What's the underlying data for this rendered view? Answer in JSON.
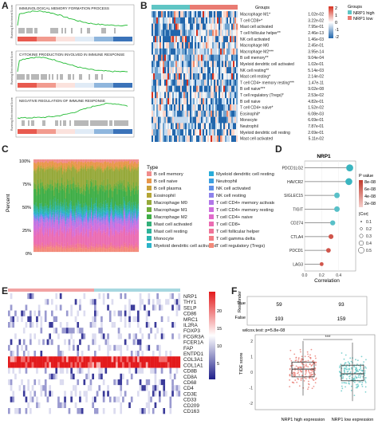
{
  "panel_labels": [
    "A",
    "B",
    "C",
    "D",
    "E",
    "F"
  ],
  "colors": {
    "heat_hi": "#d7301f",
    "heat_lo": "#2166ac",
    "nrp1_high": "#5fc5c4",
    "nrp1_low": "#e97b72",
    "green": "#22bb33"
  },
  "panel_a": {
    "titles": [
      "IMMUNOLOGICAL MEMORY FORMATION PROCESS",
      "CYTOKINE PRODUCTION INVOLVED IN IMMUNE RESPONSE",
      "NEGATIVE REGULATION OF IMMUNE RESPONSE"
    ],
    "ylabel": "Running Enrichment Score"
  },
  "panel_b": {
    "legend_title": "Groups",
    "legend_items": [
      "NRP1 high",
      "NRP1 low"
    ],
    "scale_ticks": [
      "2",
      "1",
      "0",
      "-1",
      "-2"
    ],
    "rows": [
      {
        "name": "Macrophage M1*",
        "p": "1.02e-02"
      },
      {
        "name": "T cell CD8+*",
        "p": "3.22e-02"
      },
      {
        "name": "Mast cell activated",
        "p": "7.95e-01"
      },
      {
        "name": "T cell follicular helper**",
        "p": "2.46e-13"
      },
      {
        "name": "NK cell activated",
        "p": "1.46e-03"
      },
      {
        "name": "Macrophage M0",
        "p": "2.45e-01"
      },
      {
        "name": "Macrophage M2***",
        "p": "3.95e-14"
      },
      {
        "name": "B cell memory**",
        "p": "9.04e-04"
      },
      {
        "name": "Myeloid dendritic cell activated",
        "p": "1.02e-01"
      },
      {
        "name": "NK cell resting**",
        "p": "5.14e-03"
      },
      {
        "name": "Mast cell resting*",
        "p": "2.14e-02"
      },
      {
        "name": "T cell CD4+ memory resting***",
        "p": "1.47e-11"
      },
      {
        "name": "B cell naive***",
        "p": "9.02e-08"
      },
      {
        "name": "T cell regulatory (Tregs)*",
        "p": "2.53e-02"
      },
      {
        "name": "B cell naive",
        "p": "4.82e-01"
      },
      {
        "name": "T cell CD4+ naive*",
        "p": "1.52e-02"
      },
      {
        "name": "Eosinophil*",
        "p": "6.08e-03"
      },
      {
        "name": "Monocyte",
        "p": "6.69e-01"
      },
      {
        "name": "Neutrophil",
        "p": "7.87e-01"
      },
      {
        "name": "Myeloid dendritic cell resting",
        "p": "2.69e-01"
      },
      {
        "name": "Mast cell activated",
        "p": "5.11e-02"
      }
    ]
  },
  "panel_c": {
    "ylabel": "Percent",
    "yticks": [
      "100%",
      "75%",
      "50%",
      "25%",
      "0%"
    ],
    "legend_title": "Type",
    "legend_col1": [
      {
        "label": "B cell memory",
        "color": "#f08c8c"
      },
      {
        "label": "B cell naive",
        "color": "#e8964a"
      },
      {
        "label": "B cell plasma",
        "color": "#c9a13a"
      },
      {
        "label": "Eosinophil",
        "color": "#b4a535"
      },
      {
        "label": "Macrophage M0",
        "color": "#96a93a"
      },
      {
        "label": "Macrophage M1",
        "color": "#70ad3c"
      },
      {
        "label": "Macrophage M2",
        "color": "#3fae47"
      },
      {
        "label": "Mast cell activated",
        "color": "#33b07a"
      },
      {
        "label": "Mast cell resting",
        "color": "#2db39a"
      },
      {
        "label": "Monocyte",
        "color": "#2ab5b2"
      },
      {
        "label": "Myeloid dendritic cell activated",
        "color": "#2bb3c9"
      }
    ],
    "legend_col2": [
      {
        "label": "Myeloid dendritic cell resting",
        "color": "#28acd9"
      },
      {
        "label": "Neutrophil",
        "color": "#3a9fe0"
      },
      {
        "label": "NK cell activated",
        "color": "#5f8fe8"
      },
      {
        "label": "NK cell resting",
        "color": "#8d82ec"
      },
      {
        "label": "T cell CD4+ memory activated",
        "color": "#b177e8"
      },
      {
        "label": "T cell CD4+ memory resting",
        "color": "#cf6fdd"
      },
      {
        "label": "T cell CD4+ naive",
        "color": "#e06acb"
      },
      {
        "label": "T cell CD8+",
        "color": "#eb6cb2"
      },
      {
        "label": "T cell follicular helper",
        "color": "#f07399"
      },
      {
        "label": "T cell gamma delta",
        "color": "#f27d84"
      },
      {
        "label": "T cell regulatory (Tregs)",
        "color": "#f38a7a"
      }
    ]
  },
  "chart_data": [
    {
      "type": "scatter",
      "title": "NRP1",
      "xlabel": "Correlation",
      "categories": [
        "PDCD1LG2",
        "HAVCR2",
        "SIGLEC15",
        "TIGIT",
        "CD274",
        "CTLA4",
        "PDCD1",
        "LAG3"
      ],
      "values": [
        0.53,
        0.52,
        0.38,
        0.38,
        0.33,
        0.31,
        0.28,
        0.2
      ],
      "pvalues": [
        1e-30,
        1e-30,
        0.005,
        0.01,
        0.02,
        0.03,
        0.04,
        0.1
      ],
      "xticks": [
        "0.0",
        "0.2",
        "0.4"
      ],
      "xlim": [
        0,
        0.6
      ],
      "legend": {
        "pvalue_title": "P value",
        "pvalue_ticks": [
          "8e-08",
          "6e-08",
          "4e-08",
          "2e-08"
        ],
        "cor_title": "|Cor|",
        "cor_ticks": [
          "0.1",
          "0.2",
          "0.3",
          "0.4",
          "0.5"
        ]
      }
    },
    {
      "type": "box",
      "ylabel": "TIDE score",
      "categories": [
        "NRP1 high expression",
        "NRP1 low expression"
      ],
      "yticks": [
        "2",
        "1",
        "0",
        "-1",
        "-2"
      ],
      "medians": [
        0.2,
        -0.1
      ],
      "q1": [
        -0.3,
        -0.55
      ],
      "q3": [
        0.65,
        0.45
      ],
      "whisker_lo": [
        -1.5,
        -1.85
      ],
      "whisker_hi": [
        2.0,
        1.9
      ],
      "annotation": "wilcox.test: p=5.8e-08",
      "significance": "***"
    },
    {
      "type": "table",
      "title": "Responder",
      "rows": [
        "True",
        "False"
      ],
      "values": [
        [
          59,
          93
        ],
        [
          193,
          159
        ]
      ]
    }
  ],
  "panel_e": {
    "genes": [
      "NRP1",
      "THY1",
      "SELP",
      "CD86",
      "MRC1",
      "IL2RA",
      "FOXP3",
      "FCGR3A",
      "FCER1A",
      "FAP",
      "ENTPD1",
      "COL3A1",
      "COL1A1",
      "CD8B",
      "CD8A",
      "CD68",
      "CD4",
      "CD3E",
      "CD33",
      "CD209",
      "CD163"
    ],
    "scale_ticks": [
      "20",
      "15",
      "10",
      "5"
    ]
  }
}
